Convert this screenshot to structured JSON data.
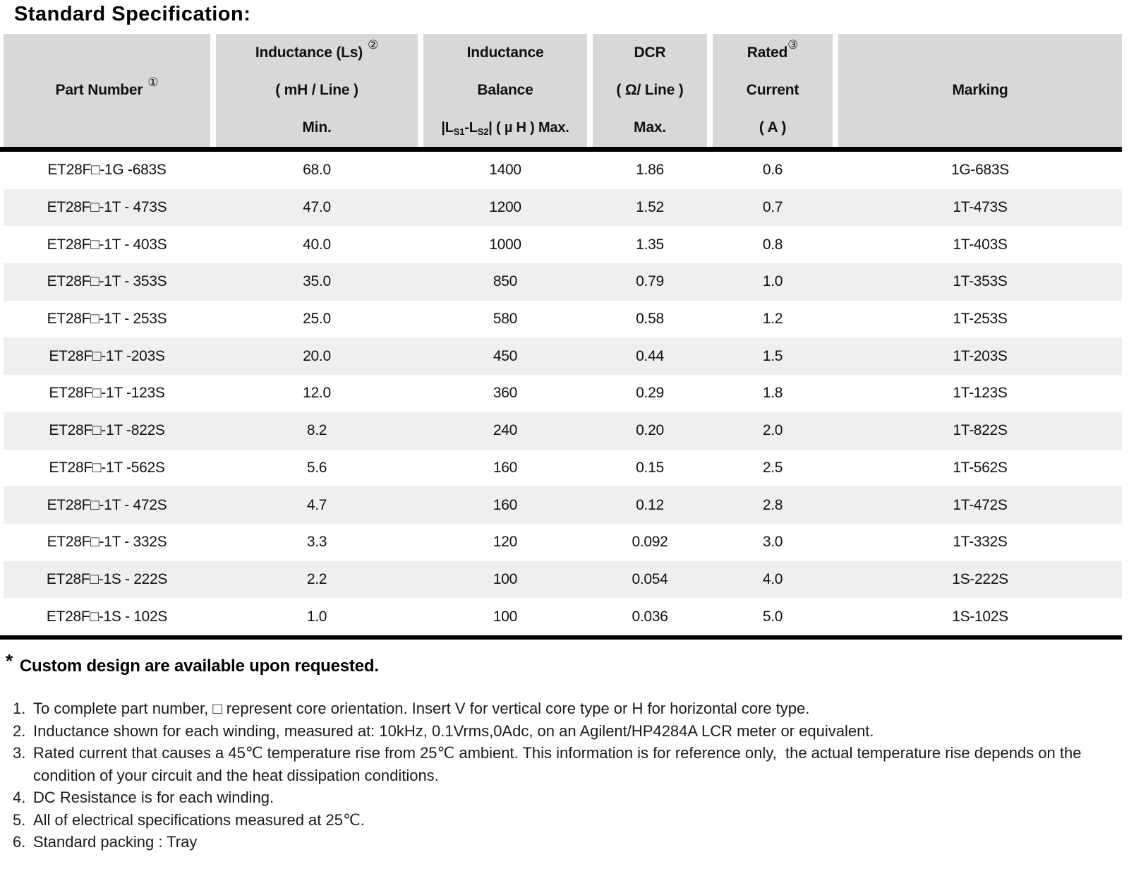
{
  "title": "Standard Specification:",
  "table": {
    "header": {
      "part_number": {
        "label": "Part Number",
        "sup": "①"
      },
      "inductance": {
        "line1": "Inductance (Ls)",
        "sup": "②",
        "line2": "( mH / Line )",
        "line3": "Min."
      },
      "balance": {
        "line1": "Inductance",
        "line2": "Balance",
        "line3": {
          "p1": "|L",
          "s1": "S1",
          "p2": "-L",
          "s2": "S2",
          "p3": "| ( µ H ) Max."
        }
      },
      "dcr": {
        "line1": "DCR",
        "line2": "( Ω/ Line )",
        "line3": "Max."
      },
      "rated": {
        "line1": "Rated",
        "sup": "③",
        "line2": "Current",
        "line3": "( A )"
      },
      "marking": {
        "label": "Marking"
      }
    },
    "rows": [
      {
        "part_number": "ET28F□-1G -683S",
        "inductance_min": "68.0",
        "balance_max": "1400",
        "dcr_max": "1.86",
        "rated_current": "0.6",
        "marking": "1G-683S"
      },
      {
        "part_number": "ET28F□-1T - 473S",
        "inductance_min": "47.0",
        "balance_max": "1200",
        "dcr_max": "1.52",
        "rated_current": "0.7",
        "marking": "1T-473S"
      },
      {
        "part_number": "ET28F□-1T - 403S",
        "inductance_min": "40.0",
        "balance_max": "1000",
        "dcr_max": "1.35",
        "rated_current": "0.8",
        "marking": "1T-403S"
      },
      {
        "part_number": "ET28F□-1T - 353S",
        "inductance_min": "35.0",
        "balance_max": "850",
        "dcr_max": "0.79",
        "rated_current": "1.0",
        "marking": "1T-353S"
      },
      {
        "part_number": "ET28F□-1T - 253S",
        "inductance_min": "25.0",
        "balance_max": "580",
        "dcr_max": "0.58",
        "rated_current": "1.2",
        "marking": "1T-253S"
      },
      {
        "part_number": "ET28F□-1T -203S",
        "inductance_min": "20.0",
        "balance_max": "450",
        "dcr_max": "0.44",
        "rated_current": "1.5",
        "marking": "1T-203S"
      },
      {
        "part_number": "ET28F□-1T -123S",
        "inductance_min": "12.0",
        "balance_max": "360",
        "dcr_max": "0.29",
        "rated_current": "1.8",
        "marking": "1T-123S"
      },
      {
        "part_number": "ET28F□-1T -822S",
        "inductance_min": "8.2",
        "balance_max": "240",
        "dcr_max": "0.20",
        "rated_current": "2.0",
        "marking": "1T-822S"
      },
      {
        "part_number": "ET28F□-1T -562S",
        "inductance_min": "5.6",
        "balance_max": "160",
        "dcr_max": "0.15",
        "rated_current": "2.5",
        "marking": "1T-562S"
      },
      {
        "part_number": "ET28F□-1T - 472S",
        "inductance_min": "4.7",
        "balance_max": "160",
        "dcr_max": "0.12",
        "rated_current": "2.8",
        "marking": "1T-472S"
      },
      {
        "part_number": "ET28F□-1T - 332S",
        "inductance_min": "3.3",
        "balance_max": "120",
        "dcr_max": "0.092",
        "rated_current": "3.0",
        "marking": "1T-332S"
      },
      {
        "part_number": "ET28F□-1S - 222S",
        "inductance_min": "2.2",
        "balance_max": "100",
        "dcr_max": "0.054",
        "rated_current": "4.0",
        "marking": "1S-222S"
      },
      {
        "part_number": "ET28F□-1S - 102S",
        "inductance_min": "1.0",
        "balance_max": "100",
        "dcr_max": "0.036",
        "rated_current": "5.0",
        "marking": "1S-102S"
      }
    ]
  },
  "notes": {
    "star": "*",
    "custom": "Custom design are available upon requested.",
    "footnotes": [
      {
        "num": "1.",
        "text": "To complete part number, □ represent core orientation. Insert V for vertical core type or H for horizontal core type."
      },
      {
        "num": "2.",
        "text": "Inductance shown for each winding, measured at: 10kHz, 0.1Vrms,0Adc, on an Agilent/HP4284A LCR meter or equivalent."
      },
      {
        "num": "3.",
        "text": "Rated current that causes a 45℃ temperature rise from 25℃ ambient. This information is for reference only,  the actual temperature rise depends on the condition of your circuit and the heat dissipation conditions."
      },
      {
        "num": "4.",
        "text": "DC Resistance is for each winding."
      },
      {
        "num": "5.",
        "text": "All of electrical specifications measured at 25℃."
      },
      {
        "num": "6.",
        "text": "Standard packing : Tray"
      }
    ]
  }
}
